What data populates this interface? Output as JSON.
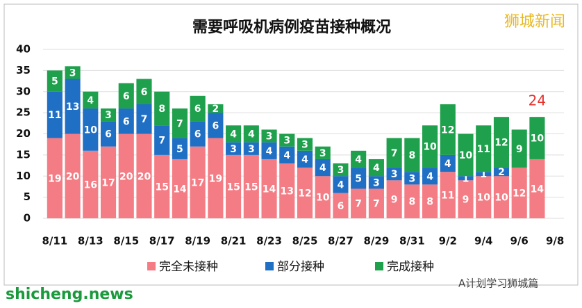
{
  "chart_data": {
    "type": "stacked_bar",
    "title": "需要呼吸机病例疫苗接种概况",
    "categories": [
      "8/11",
      null,
      "8/13",
      null,
      "8/15",
      null,
      "8/17",
      null,
      "8/19",
      null,
      "8/21",
      null,
      "8/23",
      null,
      "8/25",
      null,
      "8/27",
      null,
      "8/29",
      null,
      "8/31",
      null,
      "9/2",
      null,
      "9/4",
      null,
      "9/6",
      null,
      "9/8"
    ],
    "series": [
      {
        "name": "完全未接种",
        "color": "#f47c84",
        "values": [
          19,
          20,
          16,
          17,
          20,
          20,
          15,
          14,
          17,
          19,
          15,
          15,
          14,
          13,
          12,
          10,
          6,
          7,
          7,
          9,
          8,
          8,
          11,
          9,
          10,
          10,
          12,
          14,
          null
        ]
      },
      {
        "name": "部分接种",
        "color": "#1f6fc5",
        "values": [
          11,
          13,
          10,
          6,
          6,
          7,
          7,
          5,
          6,
          6,
          3,
          3,
          4,
          4,
          4,
          4,
          4,
          5,
          3,
          3,
          3,
          4,
          4,
          1,
          1,
          2,
          0,
          0,
          null
        ]
      },
      {
        "name": "完成接种",
        "color": "#1ea04c",
        "values": [
          5,
          3,
          4,
          3,
          6,
          6,
          8,
          7,
          6,
          2,
          4,
          4,
          3,
          3,
          3,
          3,
          3,
          4,
          4,
          7,
          8,
          10,
          12,
          10,
          11,
          12,
          9,
          10,
          null
        ]
      }
    ],
    "annotations": [
      {
        "text": "24"
      }
    ],
    "ylim": [
      0,
      40
    ],
    "yticks": [
      0,
      5,
      10,
      15,
      20,
      25,
      30,
      35,
      40
    ],
    "grid": true,
    "legend": "bottom"
  },
  "watermarks": [
    "狮城新闻",
    "shicheng.news",
    "A计划学习狮城篇"
  ]
}
